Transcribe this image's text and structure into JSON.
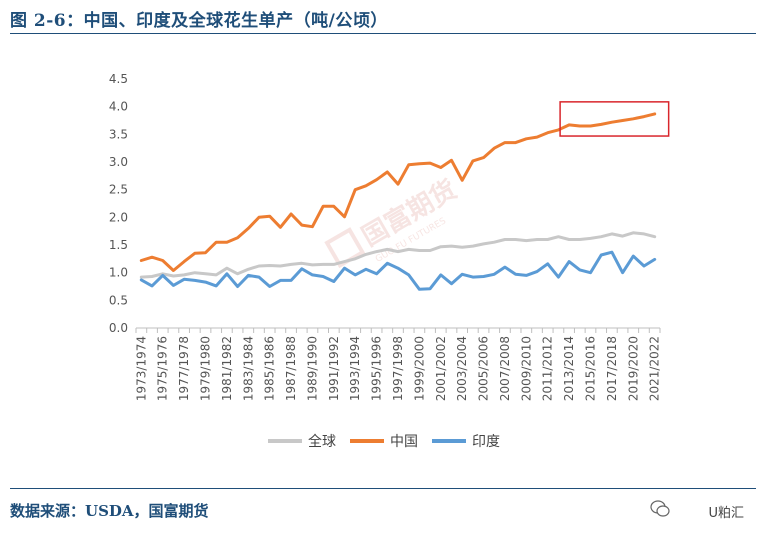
{
  "header": {
    "title": "图 2-6：中国、印度及全球花生单产（吨/公顷）"
  },
  "footer": {
    "source": "数据来源：USDA，国富期货",
    "wechat_label": "U粕汇"
  },
  "watermark": {
    "text": "国富期货",
    "sub": "GUO FU FUTURES"
  },
  "colors": {
    "global": "#c8c8c8",
    "china": "#ed7d31",
    "india": "#5b9bd5",
    "highlight": "#d9262c",
    "brand": "#1f4e79"
  },
  "chart_data": {
    "type": "line",
    "title": "",
    "xlabel": "",
    "ylabel": "",
    "ylim": [
      0,
      4.5
    ],
    "y_ticks": [
      "0.0",
      "0.5",
      "1.0",
      "1.5",
      "2.0",
      "2.5",
      "3.0",
      "3.5",
      "4.0",
      "4.5"
    ],
    "grid": false,
    "legend_position": "bottom",
    "x": [
      "1973/1974",
      "1974/1975",
      "1975/1976",
      "1976/1977",
      "1977/1978",
      "1978/1979",
      "1979/1980",
      "1980/1981",
      "1981/1982",
      "1982/1983",
      "1983/1984",
      "1984/1985",
      "1985/1986",
      "1986/1987",
      "1987/1988",
      "1988/1989",
      "1989/1990",
      "1990/1991",
      "1991/1992",
      "1992/1993",
      "1993/1994",
      "1994/1995",
      "1995/1996",
      "1996/1997",
      "1997/1998",
      "1998/1999",
      "1999/2000",
      "2000/2001",
      "2001/2002",
      "2002/2003",
      "2003/2004",
      "2004/2005",
      "2005/2006",
      "2006/2007",
      "2007/2008",
      "2008/2009",
      "2009/2010",
      "2010/2011",
      "2011/2012",
      "2012/2013",
      "2013/2014",
      "2014/2015",
      "2015/2016",
      "2016/2017",
      "2017/2018",
      "2018/2019",
      "2019/2020",
      "2020/2021",
      "2021/2022"
    ],
    "x_tick_labels": [
      "1973/1974",
      "1975/1976",
      "1977/1978",
      "1979/1980",
      "1981/1982",
      "1983/1984",
      "1985/1986",
      "1987/1988",
      "1989/1990",
      "1991/1992",
      "1993/1994",
      "1995/1996",
      "1997/1998",
      "1999/2000",
      "2001/2002",
      "2003/2004",
      "2005/2006",
      "2007/2008",
      "2009/2010",
      "2011/2012",
      "2013/2014",
      "2015/2016",
      "2017/2018",
      "2019/2020",
      "2021/2022"
    ],
    "series": [
      {
        "name": "全球",
        "key": "global",
        "values": [
          0.92,
          0.93,
          0.98,
          0.94,
          0.96,
          1.0,
          0.98,
          0.96,
          1.08,
          0.98,
          1.06,
          1.12,
          1.13,
          1.12,
          1.15,
          1.17,
          1.14,
          1.15,
          1.15,
          1.2,
          1.25,
          1.33,
          1.38,
          1.42,
          1.38,
          1.42,
          1.4,
          1.4,
          1.47,
          1.48,
          1.46,
          1.48,
          1.52,
          1.55,
          1.6,
          1.6,
          1.58,
          1.6,
          1.6,
          1.65,
          1.6,
          1.6,
          1.62,
          1.65,
          1.7,
          1.66,
          1.72,
          1.7,
          1.65
        ]
      },
      {
        "name": "中国",
        "key": "china",
        "values": [
          1.22,
          1.28,
          1.22,
          1.04,
          1.2,
          1.35,
          1.36,
          1.55,
          1.55,
          1.63,
          1.8,
          2.0,
          2.02,
          1.82,
          2.06,
          1.86,
          1.83,
          2.2,
          2.2,
          2.01,
          2.5,
          2.57,
          2.68,
          2.82,
          2.6,
          2.95,
          2.97,
          2.98,
          2.9,
          3.03,
          2.67,
          3.02,
          3.08,
          3.25,
          3.35,
          3.35,
          3.42,
          3.45,
          3.53,
          3.58,
          3.67,
          3.65,
          3.65,
          3.68,
          3.72,
          3.75,
          3.78,
          3.82,
          3.87
        ]
      },
      {
        "name": "印度",
        "key": "india",
        "values": [
          0.87,
          0.76,
          0.95,
          0.77,
          0.88,
          0.86,
          0.83,
          0.76,
          0.98,
          0.75,
          0.95,
          0.92,
          0.75,
          0.86,
          0.86,
          1.07,
          0.96,
          0.93,
          0.84,
          1.08,
          0.96,
          1.06,
          0.98,
          1.17,
          1.08,
          0.96,
          0.7,
          0.71,
          0.96,
          0.8,
          0.97,
          0.92,
          0.93,
          0.97,
          1.1,
          0.97,
          0.95,
          1.02,
          1.16,
          0.92,
          1.2,
          1.05,
          1.0,
          1.32,
          1.37,
          1.0,
          1.3,
          1.12,
          1.24
        ]
      }
    ]
  }
}
